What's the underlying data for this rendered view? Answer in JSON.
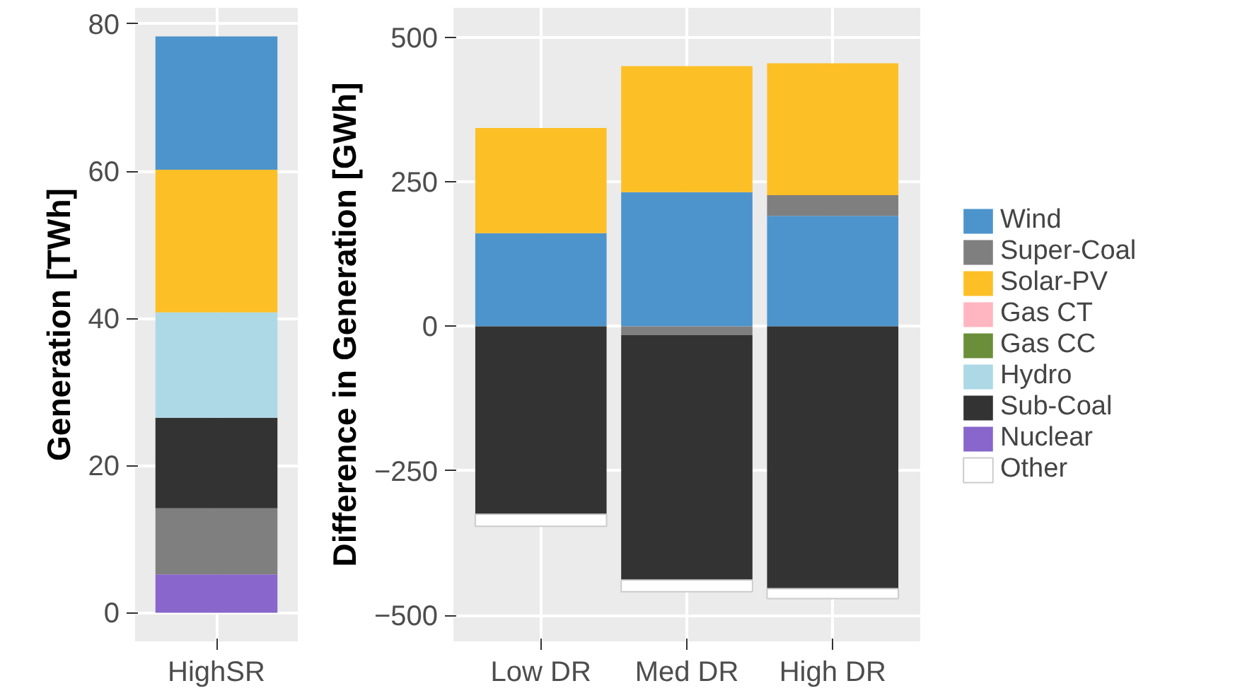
{
  "chart_data": [
    {
      "type": "bar",
      "stacked": true,
      "ylabel": "Generation [TWh]",
      "categories": [
        "HighSR"
      ],
      "ylim": [
        -3.9,
        82.2
      ],
      "yticks": [
        0,
        20,
        40,
        60,
        80
      ],
      "grid": true,
      "legend": false,
      "series": [
        {
          "color": "#8866cc",
          "values": [
            5.2
          ]
        },
        {
          "color": "#7f7f7f",
          "values": [
            9.0
          ]
        },
        {
          "color": "#333333",
          "values": [
            12.3
          ]
        },
        {
          "color": "#add8e6",
          "values": [
            14.3
          ]
        },
        {
          "color": "#fdbf26",
          "values": [
            19.4
          ]
        },
        {
          "color": "#4d94cc",
          "values": [
            18.1
          ]
        }
      ]
    },
    {
      "type": "bar",
      "stacked": true,
      "ylabel": "Difference in Generation [GWh]",
      "categories": [
        "Low DR",
        "Med DR",
        "High DR"
      ],
      "ylim": [
        -545,
        551
      ],
      "yticks": [
        -500,
        -250,
        0,
        250,
        500
      ],
      "grid": true,
      "legend": "right",
      "series": [
        {
          "name": "Wind",
          "color": "#4d94cc",
          "values": [
            161,
            232,
            191
          ]
        },
        {
          "name": "Super-Coal",
          "color": "#7f7f7f",
          "values": [
            0,
            -15,
            36
          ]
        },
        {
          "name": "Solar-PV",
          "color": "#fdbf26",
          "values": [
            182,
            218,
            228
          ]
        },
        {
          "name": "Gas CT",
          "color": "#ffb6c1",
          "values": [
            0,
            0,
            0
          ]
        },
        {
          "name": "Gas CC",
          "color": "#6b8e3a",
          "values": [
            0,
            0,
            0
          ]
        },
        {
          "name": "Hydro",
          "color": "#add8e6",
          "values": [
            0,
            0,
            0
          ]
        },
        {
          "name": "Sub-Coal",
          "color": "#333333",
          "values": [
            -325,
            -424,
            -454
          ]
        },
        {
          "name": "Nuclear",
          "color": "#8866cc",
          "values": [
            0,
            0,
            0
          ]
        },
        {
          "name": "Other",
          "color": "#ffffff",
          "values": [
            -21,
            -20,
            -17
          ]
        }
      ]
    }
  ]
}
